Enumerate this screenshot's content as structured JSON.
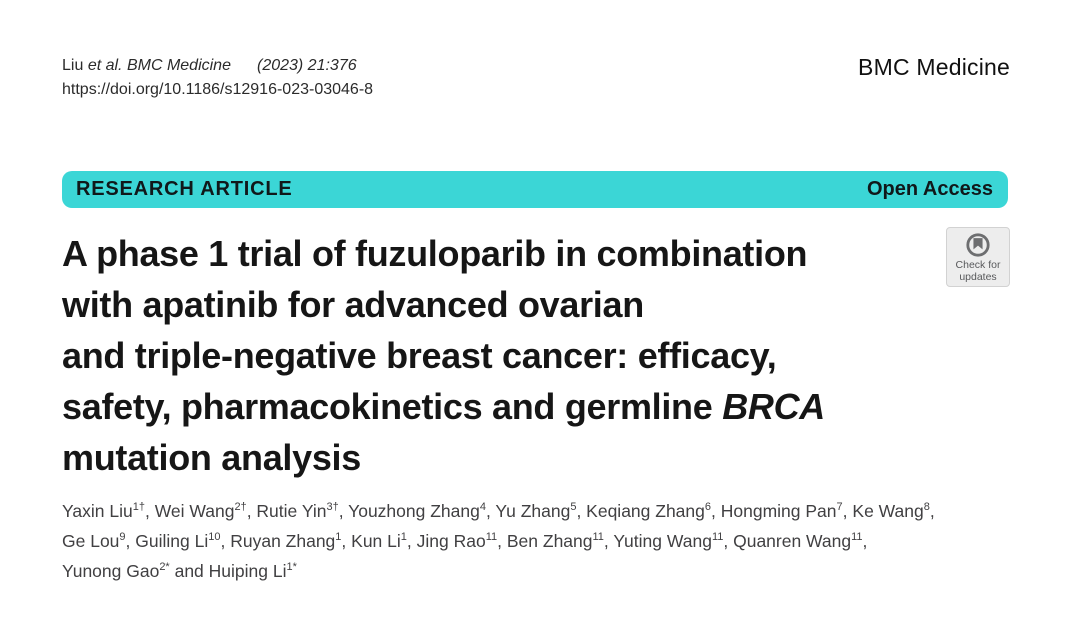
{
  "header": {
    "citation": {
      "author": "Liu",
      "etal_journal": "et al. BMC Medicine",
      "issue": "(2023) 21:376"
    },
    "doi": "https://doi.org/10.1186/s12916-023-03046-8",
    "journal_name": "BMC Medicine"
  },
  "banner": {
    "article_type": "RESEARCH ARTICLE",
    "access_label": "Open Access",
    "background_color": "#3bd6d6"
  },
  "crossmark_badge": {
    "line1": "Check for",
    "line2": "updates"
  },
  "article": {
    "title_plain": "A phase 1 trial of fuzuloparib in combination with apatinib for advanced ovarian and triple-negative breast cancer: efficacy, safety, pharmacokinetics and germline BRCA mutation analysis",
    "title_lines": [
      {
        "text": "A phase 1 trial of fuzuloparib in combination"
      },
      {
        "text": "with apatinib for advanced ovarian"
      },
      {
        "text": "and triple-negative breast cancer: efficacy,"
      },
      {
        "text": "safety, pharmacokinetics and germline ",
        "italic": "BRCA"
      },
      {
        "text": "mutation analysis"
      }
    ],
    "authors": [
      {
        "name": "Yaxin Liu",
        "sup": "1†"
      },
      {
        "name": "Wei Wang",
        "sup": "2†"
      },
      {
        "name": "Rutie Yin",
        "sup": "3†"
      },
      {
        "name": "Youzhong Zhang",
        "sup": "4"
      },
      {
        "name": "Yu Zhang",
        "sup": "5"
      },
      {
        "name": "Keqiang Zhang",
        "sup": "6"
      },
      {
        "name": "Hongming Pan",
        "sup": "7"
      },
      {
        "name": "Ke Wang",
        "sup": "8",
        "break_after": true
      },
      {
        "name": "Ge Lou",
        "sup": "9"
      },
      {
        "name": "Guiling Li",
        "sup": "10"
      },
      {
        "name": "Ruyan Zhang",
        "sup": "1"
      },
      {
        "name": "Kun Li",
        "sup": "1"
      },
      {
        "name": "Jing Rao",
        "sup": "11"
      },
      {
        "name": "Ben Zhang",
        "sup": "11"
      },
      {
        "name": "Yuting Wang",
        "sup": "11"
      },
      {
        "name": "Quanren Wang",
        "sup": "11",
        "break_after": true
      },
      {
        "name": "Yunong Gao",
        "sup": "2*"
      },
      {
        "name": "Huiping Li",
        "sup": "1*"
      }
    ]
  }
}
